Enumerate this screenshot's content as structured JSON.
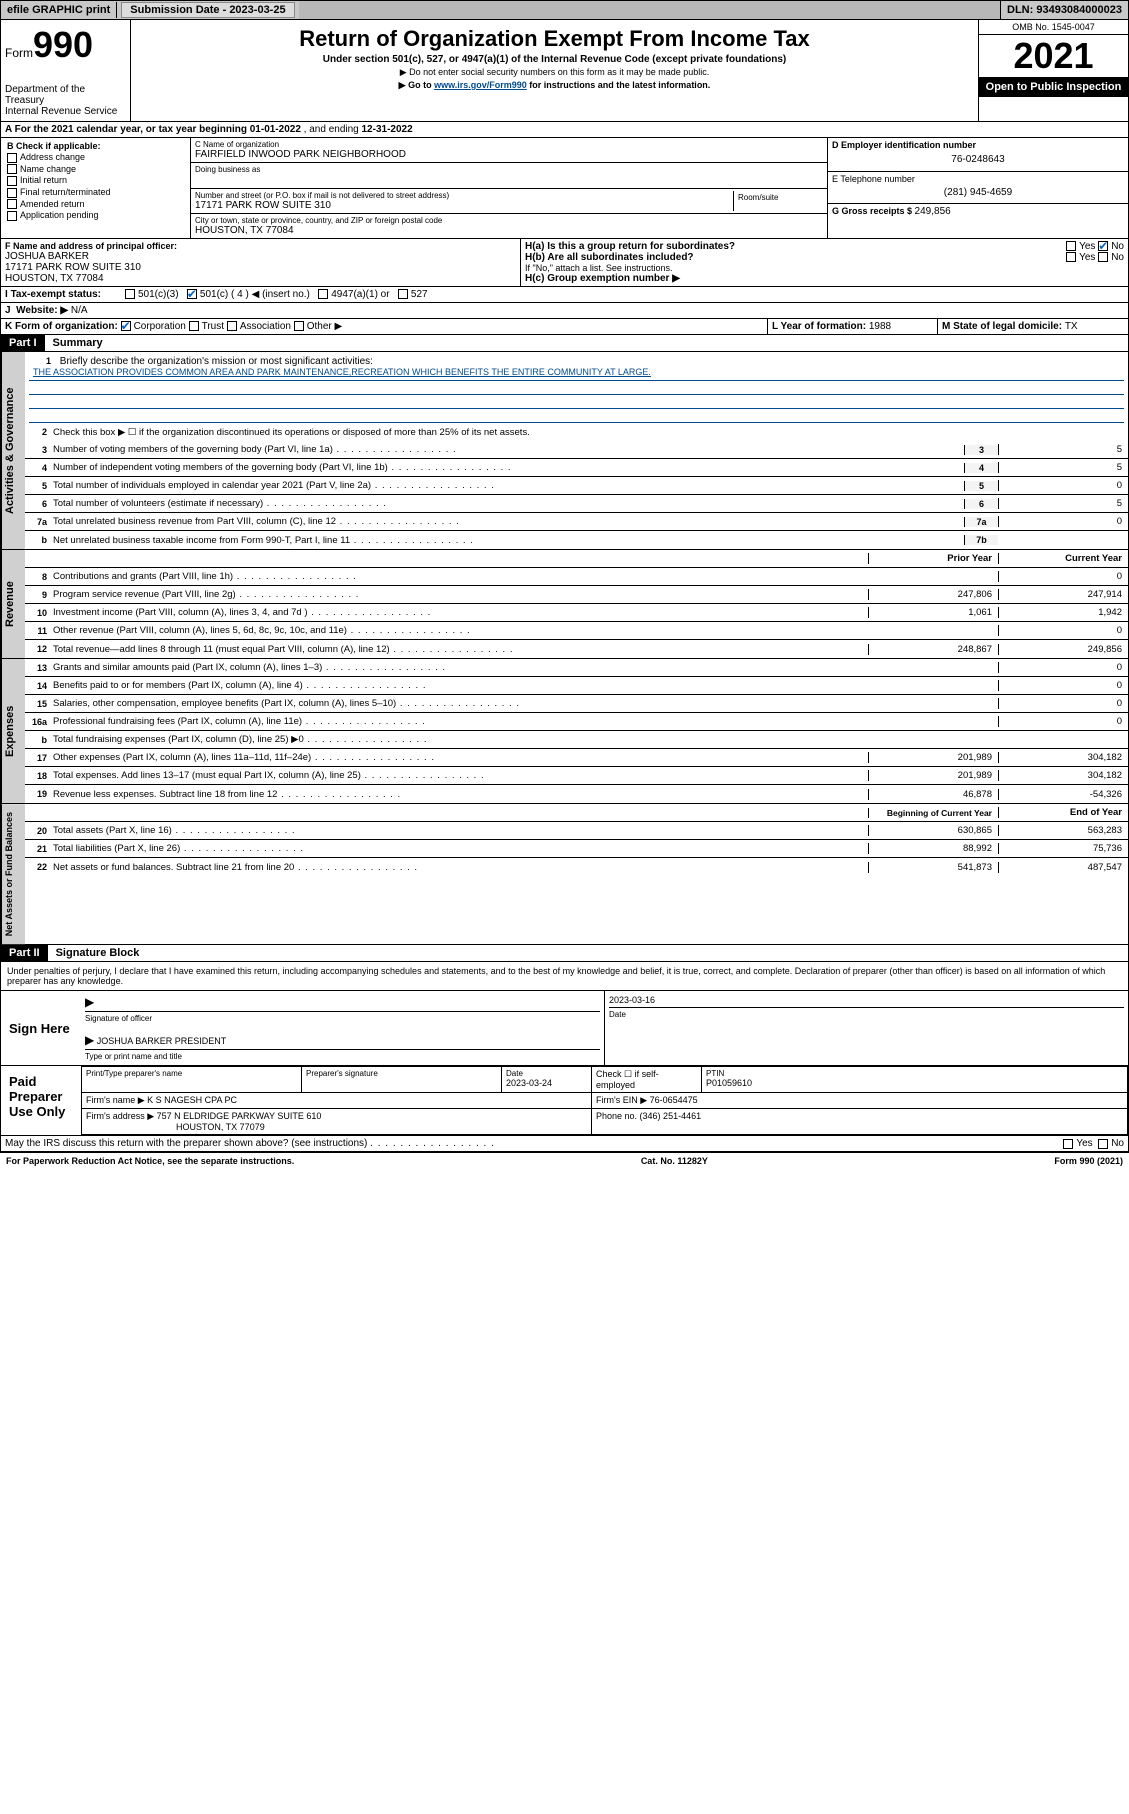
{
  "topbar": {
    "efile": "efile GRAPHIC print",
    "submission_label": "Submission Date - 2023-03-25",
    "dln": "DLN: 93493084000023"
  },
  "header": {
    "form_label": "Form",
    "form_number": "990",
    "dept": "Department of the Treasury",
    "service": "Internal Revenue Service",
    "title": "Return of Organization Exempt From Income Tax",
    "subtitle": "Under section 501(c), 527, or 4947(a)(1) of the Internal Revenue Code (except private foundations)",
    "note1": "▶ Do not enter social security numbers on this form as it may be made public.",
    "note2_pre": "▶ Go to ",
    "note2_link": "www.irs.gov/Form990",
    "note2_post": " for instructions and the latest information.",
    "omb": "OMB No. 1545-0047",
    "year": "2021",
    "inspection": "Open to Public Inspection"
  },
  "period": {
    "label_a": "A For the 2021 calendar year, or tax year beginning ",
    "begin": "01-01-2022",
    "mid": " , and ending ",
    "end": "12-31-2022"
  },
  "section_b": {
    "label": "B Check if applicable:",
    "items": [
      "Address change",
      "Name change",
      "Initial return",
      "Final return/terminated",
      "Amended return",
      "Application pending"
    ]
  },
  "section_c": {
    "name_label": "C Name of organization",
    "name": "FAIRFIELD INWOOD PARK NEIGHBORHOOD",
    "dba_label": "Doing business as",
    "street_label": "Number and street (or P.O. box if mail is not delivered to street address)",
    "room_label": "Room/suite",
    "street": "17171 PARK ROW SUITE 310",
    "city_label": "City or town, state or province, country, and ZIP or foreign postal code",
    "city": "HOUSTON, TX  77084"
  },
  "section_d": {
    "label": "D Employer identification number",
    "ein": "76-0248643",
    "phone_label": "E Telephone number",
    "phone": "(281) 945-4659",
    "gross_label": "G Gross receipts $ ",
    "gross": "249,856"
  },
  "section_f": {
    "label": "F Name and address of principal officer:",
    "name": "JOSHUA BARKER",
    "addr1": "17171 PARK ROW SUITE 310",
    "addr2": "HOUSTON, TX  77084"
  },
  "section_h": {
    "ha": "H(a)  Is this a group return for subordinates?",
    "hb": "H(b)  Are all subordinates included?",
    "hb_note": "If \"No,\" attach a list. See instructions.",
    "hc": "H(c)  Group exemption number ▶",
    "yes": "Yes",
    "no": "No"
  },
  "section_i": {
    "label": "Tax-exempt status:",
    "c3": "501(c)(3)",
    "c4": "501(c) ( 4 ) ◀ (insert no.)",
    "a1": "4947(a)(1) or",
    "s527": "527"
  },
  "section_j": {
    "label": "Website: ▶",
    "value": "N/A"
  },
  "section_k": {
    "label": "K Form of organization:",
    "corp": "Corporation",
    "trust": "Trust",
    "assoc": "Association",
    "other": "Other ▶"
  },
  "section_l": {
    "label": "L Year of formation: ",
    "value": "1988"
  },
  "section_m": {
    "label": "M State of legal domicile: ",
    "value": "TX"
  },
  "part1": {
    "header": "Part I",
    "title": "Summary",
    "q1": "Briefly describe the organization's mission or most significant activities:",
    "mission": "THE ASSOCIATION PROVIDES COMMON AREA AND PARK MAINTENANCE,RECREATION WHICH BENEFITS THE ENTIRE COMMUNITY AT LARGE.",
    "q2": "Check this box ▶ ☐  if the organization discontinued its operations or disposed of more than 25% of its net assets.",
    "lines_gov": [
      {
        "n": "3",
        "t": "Number of voting members of the governing body (Part VI, line 1a)",
        "b": "3",
        "v": "5"
      },
      {
        "n": "4",
        "t": "Number of independent voting members of the governing body (Part VI, line 1b)",
        "b": "4",
        "v": "5"
      },
      {
        "n": "5",
        "t": "Total number of individuals employed in calendar year 2021 (Part V, line 2a)",
        "b": "5",
        "v": "0"
      },
      {
        "n": "6",
        "t": "Total number of volunteers (estimate if necessary)",
        "b": "6",
        "v": "5"
      },
      {
        "n": "7a",
        "t": "Total unrelated business revenue from Part VIII, column (C), line 12",
        "b": "7a",
        "v": "0"
      },
      {
        "n": "b",
        "t": "Net unrelated business taxable income from Form 990-T, Part I, line 11",
        "b": "7b",
        "v": ""
      }
    ],
    "col_prior": "Prior Year",
    "col_current": "Current Year",
    "lines_rev": [
      {
        "n": "8",
        "t": "Contributions and grants (Part VIII, line 1h)",
        "p": "",
        "c": "0"
      },
      {
        "n": "9",
        "t": "Program service revenue (Part VIII, line 2g)",
        "p": "247,806",
        "c": "247,914"
      },
      {
        "n": "10",
        "t": "Investment income (Part VIII, column (A), lines 3, 4, and 7d )",
        "p": "1,061",
        "c": "1,942"
      },
      {
        "n": "11",
        "t": "Other revenue (Part VIII, column (A), lines 5, 6d, 8c, 9c, 10c, and 11e)",
        "p": "",
        "c": "0"
      },
      {
        "n": "12",
        "t": "Total revenue—add lines 8 through 11 (must equal Part VIII, column (A), line 12)",
        "p": "248,867",
        "c": "249,856"
      }
    ],
    "lines_exp": [
      {
        "n": "13",
        "t": "Grants and similar amounts paid (Part IX, column (A), lines 1–3)",
        "p": "",
        "c": "0"
      },
      {
        "n": "14",
        "t": "Benefits paid to or for members (Part IX, column (A), line 4)",
        "p": "",
        "c": "0"
      },
      {
        "n": "15",
        "t": "Salaries, other compensation, employee benefits (Part IX, column (A), lines 5–10)",
        "p": "",
        "c": "0"
      },
      {
        "n": "16a",
        "t": "Professional fundraising fees (Part IX, column (A), line 11e)",
        "p": "",
        "c": "0"
      },
      {
        "n": "b",
        "t": "Total fundraising expenses (Part IX, column (D), line 25) ▶0",
        "p": "shaded",
        "c": "shaded"
      },
      {
        "n": "17",
        "t": "Other expenses (Part IX, column (A), lines 11a–11d, 11f–24e)",
        "p": "201,989",
        "c": "304,182"
      },
      {
        "n": "18",
        "t": "Total expenses. Add lines 13–17 (must equal Part IX, column (A), line 25)",
        "p": "201,989",
        "c": "304,182"
      },
      {
        "n": "19",
        "t": "Revenue less expenses. Subtract line 18 from line 12",
        "p": "46,878",
        "c": "-54,326"
      }
    ],
    "col_begin": "Beginning of Current Year",
    "col_end": "End of Year",
    "lines_net": [
      {
        "n": "20",
        "t": "Total assets (Part X, line 16)",
        "p": "630,865",
        "c": "563,283"
      },
      {
        "n": "21",
        "t": "Total liabilities (Part X, line 26)",
        "p": "88,992",
        "c": "75,736"
      },
      {
        "n": "22",
        "t": "Net assets or fund balances. Subtract line 21 from line 20",
        "p": "541,873",
        "c": "487,547"
      }
    ]
  },
  "part2": {
    "header": "Part II",
    "title": "Signature Block",
    "decl": "Under penalties of perjury, I declare that I have examined this return, including accompanying schedules and statements, and to the best of my knowledge and belief, it is true, correct, and complete. Declaration of preparer (other than officer) is based on all information of which preparer has any knowledge.",
    "sign_here": "Sign Here",
    "sig_officer": "Signature of officer",
    "sig_date": "2023-03-16",
    "date_label": "Date",
    "officer_name": "JOSHUA BARKER  PRESIDENT",
    "type_name": "Type or print name and title",
    "paid": "Paid Preparer Use Only",
    "prep_name_label": "Print/Type preparer's name",
    "prep_sig_label": "Preparer's signature",
    "prep_date_label": "Date",
    "prep_date": "2023-03-24",
    "self_emp": "Check ☐ if self-employed",
    "ptin_label": "PTIN",
    "ptin": "P01059610",
    "firm_name_label": "Firm's name    ▶ ",
    "firm_name": "K S NAGESH CPA PC",
    "firm_ein_label": "Firm's EIN ▶ ",
    "firm_ein": "76-0654475",
    "firm_addr_label": "Firm's address ▶ ",
    "firm_addr": "757 N ELDRIDGE PARKWAY SUITE 610",
    "firm_city": "HOUSTON, TX  77079",
    "firm_phone_label": "Phone no. ",
    "firm_phone": "(346) 251-4461",
    "discuss": "May the IRS discuss this return with the preparer shown above? (see instructions)"
  },
  "footer": {
    "left": "For Paperwork Reduction Act Notice, see the separate instructions.",
    "mid": "Cat. No. 11282Y",
    "right": "Form 990 (2021)"
  }
}
